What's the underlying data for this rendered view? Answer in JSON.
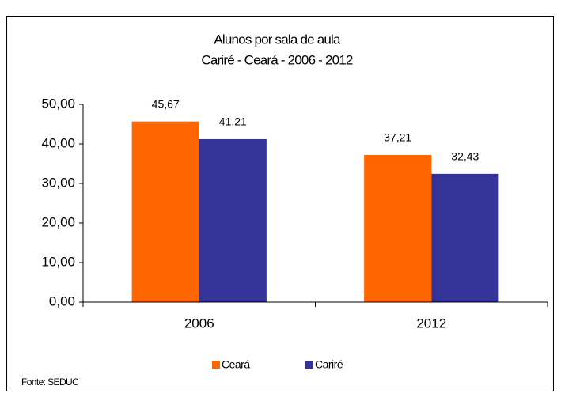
{
  "chart_data": {
    "type": "bar",
    "title": "Alunos por sala de aula",
    "subtitle": "Cariré - Ceará - 2006 - 2012",
    "categories": [
      "2006",
      "2012"
    ],
    "series": [
      {
        "name": "Ceará",
        "color": "#ff6600",
        "values": [
          45.67,
          37.21
        ],
        "value_labels": [
          "45,67",
          "37,21"
        ]
      },
      {
        "name": "Cariré",
        "color": "#333399",
        "values": [
          41.21,
          32.43
        ],
        "value_labels": [
          "41,21",
          "32,43"
        ]
      }
    ],
    "ylim": [
      0,
      50
    ],
    "yticks": [
      {
        "value": 0,
        "label": "0,00"
      },
      {
        "value": 10,
        "label": "10,00"
      },
      {
        "value": 20,
        "label": "20,00"
      },
      {
        "value": 30,
        "label": "30,00"
      },
      {
        "value": 40,
        "label": "40,00"
      },
      {
        "value": 50,
        "label": "50,00"
      }
    ],
    "grid": false,
    "legend": "bottom",
    "source": "Fonte: SEDUC"
  }
}
